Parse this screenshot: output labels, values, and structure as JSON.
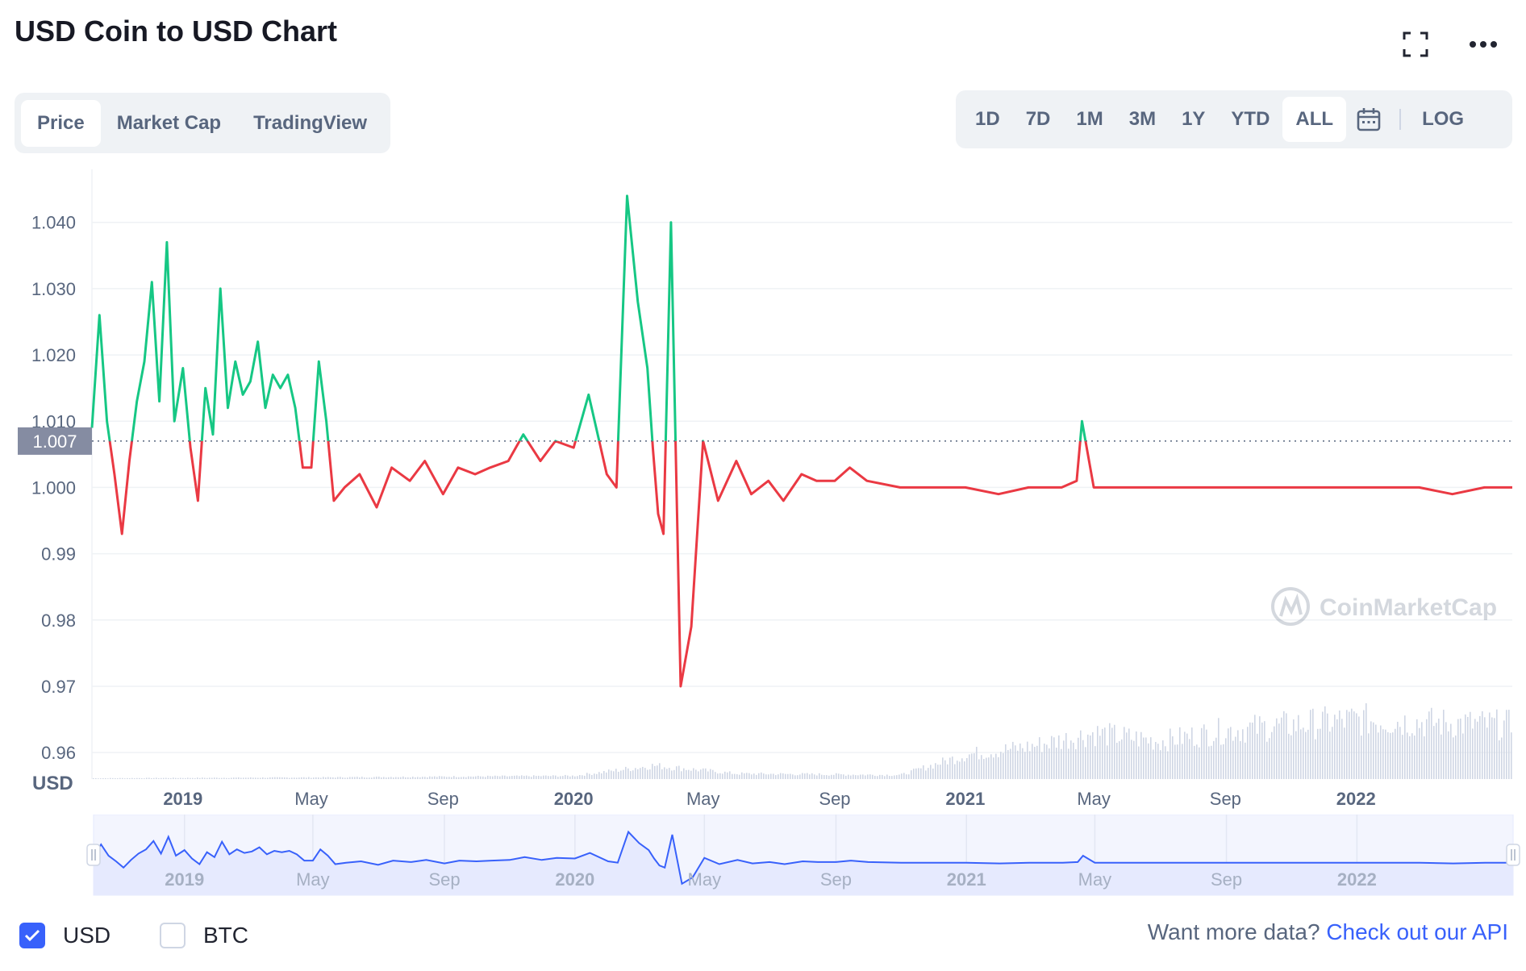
{
  "title": "USD Coin to USD Chart",
  "icons": {
    "fullscreen": "fullscreen-icon",
    "more": "more-options-icon",
    "calendar": "calendar-icon",
    "check": "check-icon",
    "watermark": "coinmarketcap-logo"
  },
  "tabs": [
    {
      "label": "Price",
      "active": true
    },
    {
      "label": "Market Cap",
      "active": false
    },
    {
      "label": "TradingView",
      "active": false
    }
  ],
  "ranges": [
    {
      "label": "1D",
      "active": false
    },
    {
      "label": "7D",
      "active": false
    },
    {
      "label": "1M",
      "active": false
    },
    {
      "label": "3M",
      "active": false
    },
    {
      "label": "1Y",
      "active": false
    },
    {
      "label": "YTD",
      "active": false
    },
    {
      "label": "ALL",
      "active": true
    }
  ],
  "log_label": "LOG",
  "currency_label": "USD",
  "legend": {
    "usd": {
      "label": "USD",
      "checked": true
    },
    "btc": {
      "label": "BTC",
      "checked": false
    }
  },
  "api": {
    "prefix": "Want more data?",
    "link": "Check out our API"
  },
  "watermark_text": "CoinMarketCap",
  "colors": {
    "up": "#16c784",
    "down": "#ea3943",
    "navigator_line": "#3861fb",
    "navigator_fill": "#e6eafe",
    "accent": "#3861fb",
    "grid": "#eff2f5",
    "axis_text": "#58667e",
    "baseline_label_bg": "#858ca2"
  },
  "chart_data": {
    "type": "line",
    "x_tick_labels": [
      "2019",
      "May",
      "Sep",
      "2020",
      "May",
      "Sep",
      "2021",
      "May",
      "Sep",
      "2022"
    ],
    "x_tick_dates": [
      "2019-01-01",
      "2019-05-01",
      "2019-09-01",
      "2020-01-01",
      "2020-05-01",
      "2020-09-01",
      "2021-01-01",
      "2021-05-01",
      "2021-09-01",
      "2022-01-01"
    ],
    "x_range": [
      "2018-10-08",
      "2022-05-27"
    ],
    "y_tick_labels": [
      "0.96",
      "0.97",
      "0.98",
      "0.99",
      "1.000",
      "1.010",
      "1.020",
      "1.030",
      "1.040"
    ],
    "ylim": [
      0.956,
      1.048
    ],
    "baseline": {
      "value": 1.007,
      "label": "1.007"
    },
    "color_rule": "green above baseline, red below baseline",
    "grid": true,
    "series": [
      {
        "dates": [
          "2018-10-08",
          "2018-10-15",
          "2018-10-22",
          "2018-10-29",
          "2018-11-05",
          "2018-11-12",
          "2018-11-19",
          "2018-11-26",
          "2018-12-03",
          "2018-12-10",
          "2018-12-17",
          "2018-12-24",
          "2019-01-01",
          "2019-01-08",
          "2019-01-15",
          "2019-01-22",
          "2019-01-29",
          "2019-02-05",
          "2019-02-12",
          "2019-02-19",
          "2019-02-26",
          "2019-03-05",
          "2019-03-12",
          "2019-03-19",
          "2019-03-26",
          "2019-04-02",
          "2019-04-09",
          "2019-04-16",
          "2019-04-23",
          "2019-05-01",
          "2019-05-08",
          "2019-05-15",
          "2019-05-22",
          "2019-06-01",
          "2019-06-15",
          "2019-07-01",
          "2019-07-15",
          "2019-08-01",
          "2019-08-15",
          "2019-09-01",
          "2019-09-15",
          "2019-10-01",
          "2019-10-15",
          "2019-11-01",
          "2019-11-15",
          "2019-12-01",
          "2019-12-15",
          "2020-01-01",
          "2020-01-15",
          "2020-02-01",
          "2020-02-10",
          "2020-02-20",
          "2020-03-01",
          "2020-03-10",
          "2020-03-15",
          "2020-03-20",
          "2020-03-25",
          "2020-04-01",
          "2020-04-10",
          "2020-04-20",
          "2020-05-01",
          "2020-05-15",
          "2020-06-01",
          "2020-06-15",
          "2020-07-01",
          "2020-07-15",
          "2020-08-01",
          "2020-08-15",
          "2020-09-01",
          "2020-09-15",
          "2020-10-01",
          "2020-11-01",
          "2020-12-01",
          "2021-01-01",
          "2021-02-01",
          "2021-03-01",
          "2021-04-01",
          "2021-04-15",
          "2021-04-20",
          "2021-05-01",
          "2021-06-01",
          "2021-07-01",
          "2021-08-01",
          "2021-09-01",
          "2021-10-01",
          "2021-11-01",
          "2021-12-01",
          "2022-01-01",
          "2022-02-01",
          "2022-03-01",
          "2022-04-01",
          "2022-05-01",
          "2022-05-27"
        ],
        "values": [
          1.009,
          1.026,
          1.01,
          1.002,
          0.993,
          1.004,
          1.013,
          1.019,
          1.031,
          1.013,
          1.037,
          1.01,
          1.018,
          1.006,
          0.998,
          1.015,
          1.008,
          1.03,
          1.012,
          1.019,
          1.014,
          1.016,
          1.022,
          1.012,
          1.017,
          1.015,
          1.017,
          1.012,
          1.003,
          1.003,
          1.019,
          1.01,
          0.998,
          1.0,
          1.002,
          0.997,
          1.003,
          1.001,
          1.004,
          0.999,
          1.003,
          1.002,
          1.003,
          1.004,
          1.008,
          1.004,
          1.007,
          1.006,
          1.014,
          1.002,
          1.0,
          1.044,
          1.028,
          1.018,
          1.006,
          0.996,
          0.993,
          1.04,
          0.97,
          0.979,
          1.007,
          0.998,
          1.004,
          0.999,
          1.001,
          0.998,
          1.002,
          1.001,
          1.001,
          1.003,
          1.001,
          1.0,
          1.0,
          1.0,
          0.999,
          1.0,
          1.0,
          1.001,
          1.01,
          1.0,
          1.0,
          1.0,
          1.0,
          1.0,
          1.0,
          1.0,
          1.0,
          1.0,
          1.0,
          1.0,
          0.999,
          1.0,
          1.0
        ]
      }
    ],
    "volume": {
      "dates": [
        "2018-10-08",
        "2019-05-01",
        "2020-01-01",
        "2020-03-15",
        "2020-06-01",
        "2020-11-01",
        "2021-01-01",
        "2021-03-01",
        "2021-05-01",
        "2021-07-01",
        "2021-09-01",
        "2021-11-01",
        "2022-01-01",
        "2022-03-01",
        "2022-05-27"
      ],
      "values": [
        0.3,
        0.6,
        1.2,
        5.0,
        2.0,
        1.5,
        9.0,
        12.0,
        17.0,
        14.0,
        18.0,
        20.0,
        22.0,
        21.0,
        20.0
      ]
    }
  }
}
